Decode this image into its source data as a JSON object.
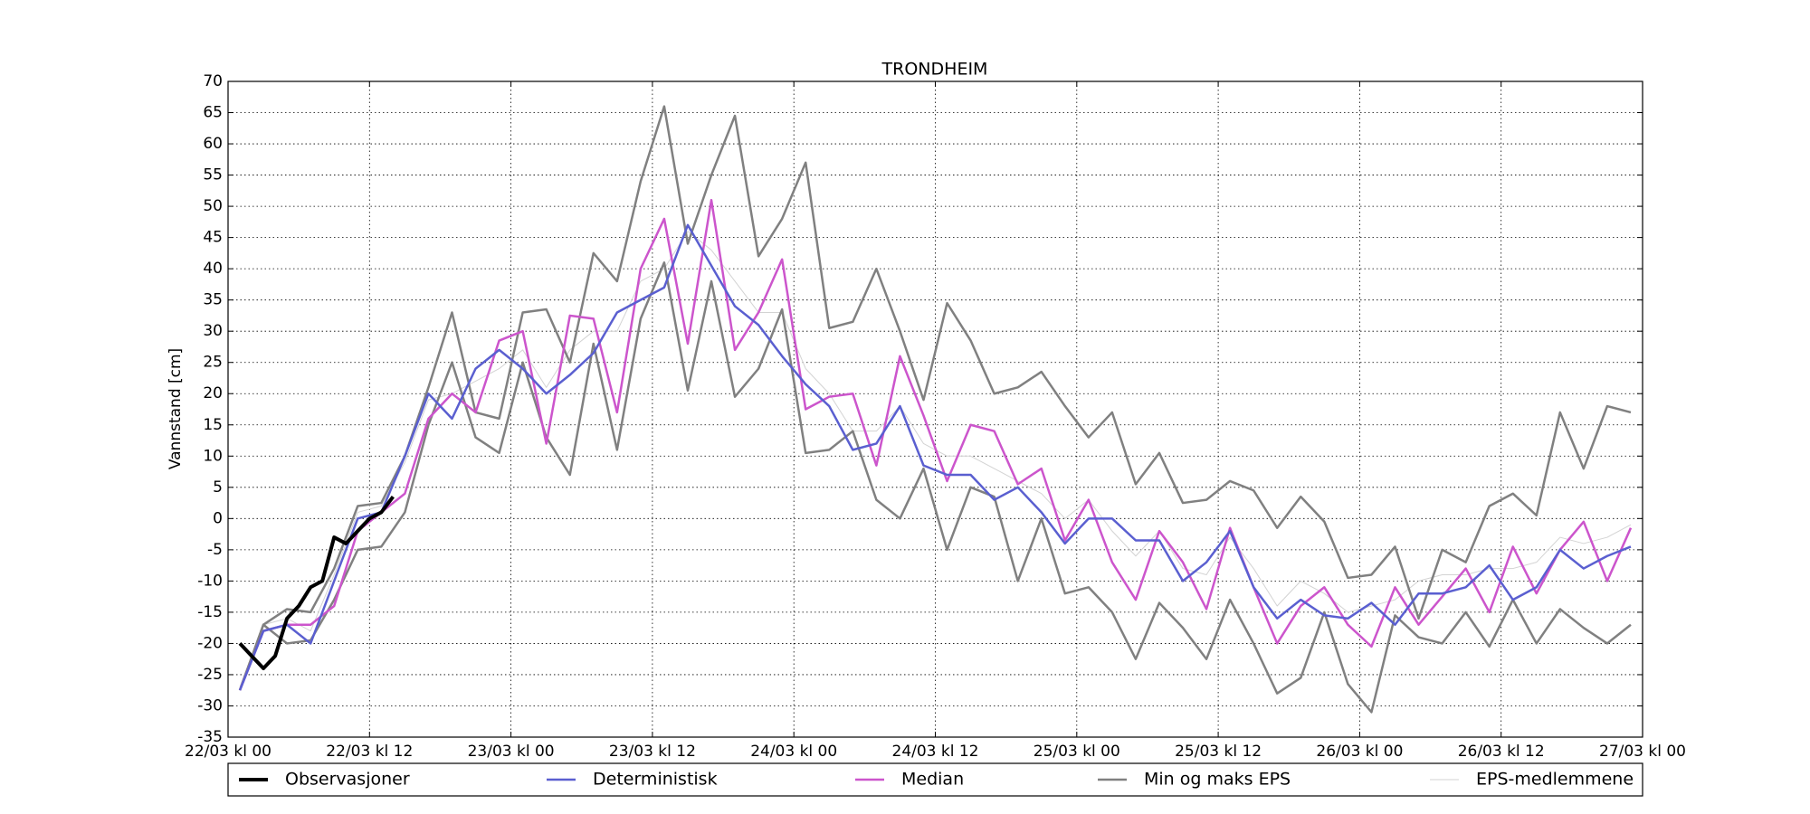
{
  "chart_data": {
    "type": "line",
    "title": "TRONDHEIM",
    "y_label": "Vannstand [cm]",
    "x": [
      1,
      3,
      5,
      7,
      9,
      11,
      13,
      15,
      17,
      19,
      21,
      23,
      25,
      27,
      29,
      31,
      33,
      35,
      37,
      39,
      41,
      43,
      45,
      47,
      49,
      51,
      53,
      55,
      57,
      59,
      61,
      63,
      65,
      67,
      69,
      71,
      73,
      75,
      77,
      79,
      81,
      83,
      85,
      87,
      89,
      91,
      93,
      95,
      97,
      99,
      101,
      103,
      105,
      107,
      109,
      111,
      113,
      115,
      117,
      119
    ],
    "xlim": [
      0,
      120
    ],
    "xticks": [
      {
        "value": 0,
        "label": "22/03 kl 00"
      },
      {
        "value": 12,
        "label": "22/03 kl 12"
      },
      {
        "value": 24,
        "label": "23/03 kl 00"
      },
      {
        "value": 36,
        "label": "23/03 kl 12"
      },
      {
        "value": 48,
        "label": "24/03 kl 00"
      },
      {
        "value": 60,
        "label": "24/03 kl 12"
      },
      {
        "value": 72,
        "label": "25/03 kl 00"
      },
      {
        "value": 84,
        "label": "25/03 kl 12"
      },
      {
        "value": 96,
        "label": "26/03 kl 00"
      },
      {
        "value": 108,
        "label": "26/03 kl 12"
      },
      {
        "value": 120,
        "label": "27/03 kl 00"
      }
    ],
    "ylim": [
      -35,
      70
    ],
    "yticks": [
      -35,
      -30,
      -25,
      -20,
      -15,
      -10,
      -5,
      0,
      5,
      10,
      15,
      20,
      25,
      30,
      35,
      40,
      45,
      50,
      55,
      60,
      65,
      70
    ],
    "grid": true,
    "legend": "bottom",
    "series": [
      {
        "name": "Observasjoner",
        "color": "#000000",
        "x": [
          1,
          2,
          3,
          4,
          5,
          6,
          7,
          8,
          9,
          10,
          11,
          12,
          13,
          14
        ],
        "values": [
          -20,
          -22,
          -24,
          -22,
          -16,
          -14,
          -11,
          -10,
          -3,
          -4,
          -2,
          0,
          1,
          3.5
        ]
      },
      {
        "name": "Deterministisk",
        "color": "#5a5fd0",
        "values": [
          -27.5,
          -18,
          -17,
          -20,
          -10,
          0,
          1,
          10,
          20,
          16,
          24,
          27,
          24,
          20,
          23,
          26.5,
          33,
          35,
          37,
          47,
          40.5,
          34,
          31,
          26,
          21.5,
          18,
          11,
          12,
          18,
          8.5,
          7,
          7,
          3,
          5,
          1,
          -4,
          0,
          0,
          -3.5,
          -3.5,
          -10,
          -7,
          -2,
          -11,
          -16,
          -13,
          -15.5,
          -16,
          -13.5,
          -17,
          -12,
          -12,
          -11,
          -7.5,
          -13,
          -11,
          -5,
          -8,
          -6,
          -4.5
        ]
      },
      {
        "name": "Median",
        "color": "#cc55cc",
        "values": [
          -27.5,
          -18,
          -17,
          -17,
          -14,
          -2,
          1,
          4,
          16,
          20,
          17,
          28.5,
          30,
          12,
          32.5,
          32,
          17,
          40,
          48,
          28,
          51,
          27,
          33,
          41.5,
          17.5,
          19.5,
          20,
          8.5,
          26,
          16.5,
          6,
          15,
          14,
          5.5,
          8,
          -3.5,
          3,
          -7,
          -13,
          -2,
          -7,
          -14.5,
          -1.5,
          -11,
          -20,
          -14,
          -11,
          -17,
          -20.5,
          -11,
          -17,
          -12.5,
          -8,
          -15,
          -4.5,
          -12,
          -5,
          -0.5,
          -10,
          -1.5
        ]
      },
      {
        "name": "Min og maks EPS",
        "color": "#808080",
        "min": [
          -27.5,
          -17,
          -20,
          -19.5,
          -13,
          -5,
          -4.5,
          1,
          15,
          25,
          13,
          10.5,
          25,
          13,
          7,
          28,
          11,
          32,
          41,
          20.5,
          38,
          19.5,
          24,
          33.5,
          10.5,
          11,
          14,
          3,
          0,
          8,
          -5,
          5,
          3.5,
          -10,
          0,
          -12,
          -11,
          -15,
          -22.5,
          -13.5,
          -17.5,
          -22.5,
          -13,
          -20,
          -28,
          -25.5,
          -15,
          -26.5,
          -31,
          -15.5,
          -19,
          -20,
          -15,
          -20.5,
          -13,
          -20,
          -14.5,
          -17.5,
          -20,
          -17
        ],
        "max": [
          -27.5,
          -17,
          -14.5,
          -15,
          -8,
          2,
          2.5,
          10,
          21,
          33,
          17,
          16,
          33,
          33.5,
          25,
          42.5,
          38,
          54,
          66,
          44,
          55,
          64.5,
          42,
          48,
          57,
          30.5,
          31.5,
          40,
          30,
          19,
          34.5,
          28.5,
          20,
          21,
          23.5,
          18,
          13,
          17,
          5.5,
          10.5,
          2.5,
          3,
          6,
          4.5,
          -1.5,
          3.5,
          -0.5,
          -9.5,
          -9,
          -4.5,
          -16,
          -5,
          -7,
          2,
          4,
          0.5,
          17,
          8,
          18,
          17
        ]
      },
      {
        "name": "EPS-medlemmene",
        "color": "#d3d3d3",
        "members": [
          [
            -27,
            -17,
            -16,
            -18,
            -9,
            1,
            2,
            9,
            19,
            20,
            22,
            24,
            27,
            21,
            27,
            30,
            30,
            38,
            40,
            46,
            43,
            38,
            33,
            33,
            24,
            20,
            14,
            14,
            18,
            12,
            10,
            10,
            8,
            6,
            4,
            0,
            3,
            -2,
            -6,
            -2,
            -8,
            -9,
            -3,
            -8,
            -14,
            -10,
            -12,
            -15,
            -14,
            -13,
            -10,
            -9,
            -9,
            -8,
            -8,
            -7,
            -3,
            -4,
            -3,
            -1
          ]
        ]
      }
    ]
  }
}
